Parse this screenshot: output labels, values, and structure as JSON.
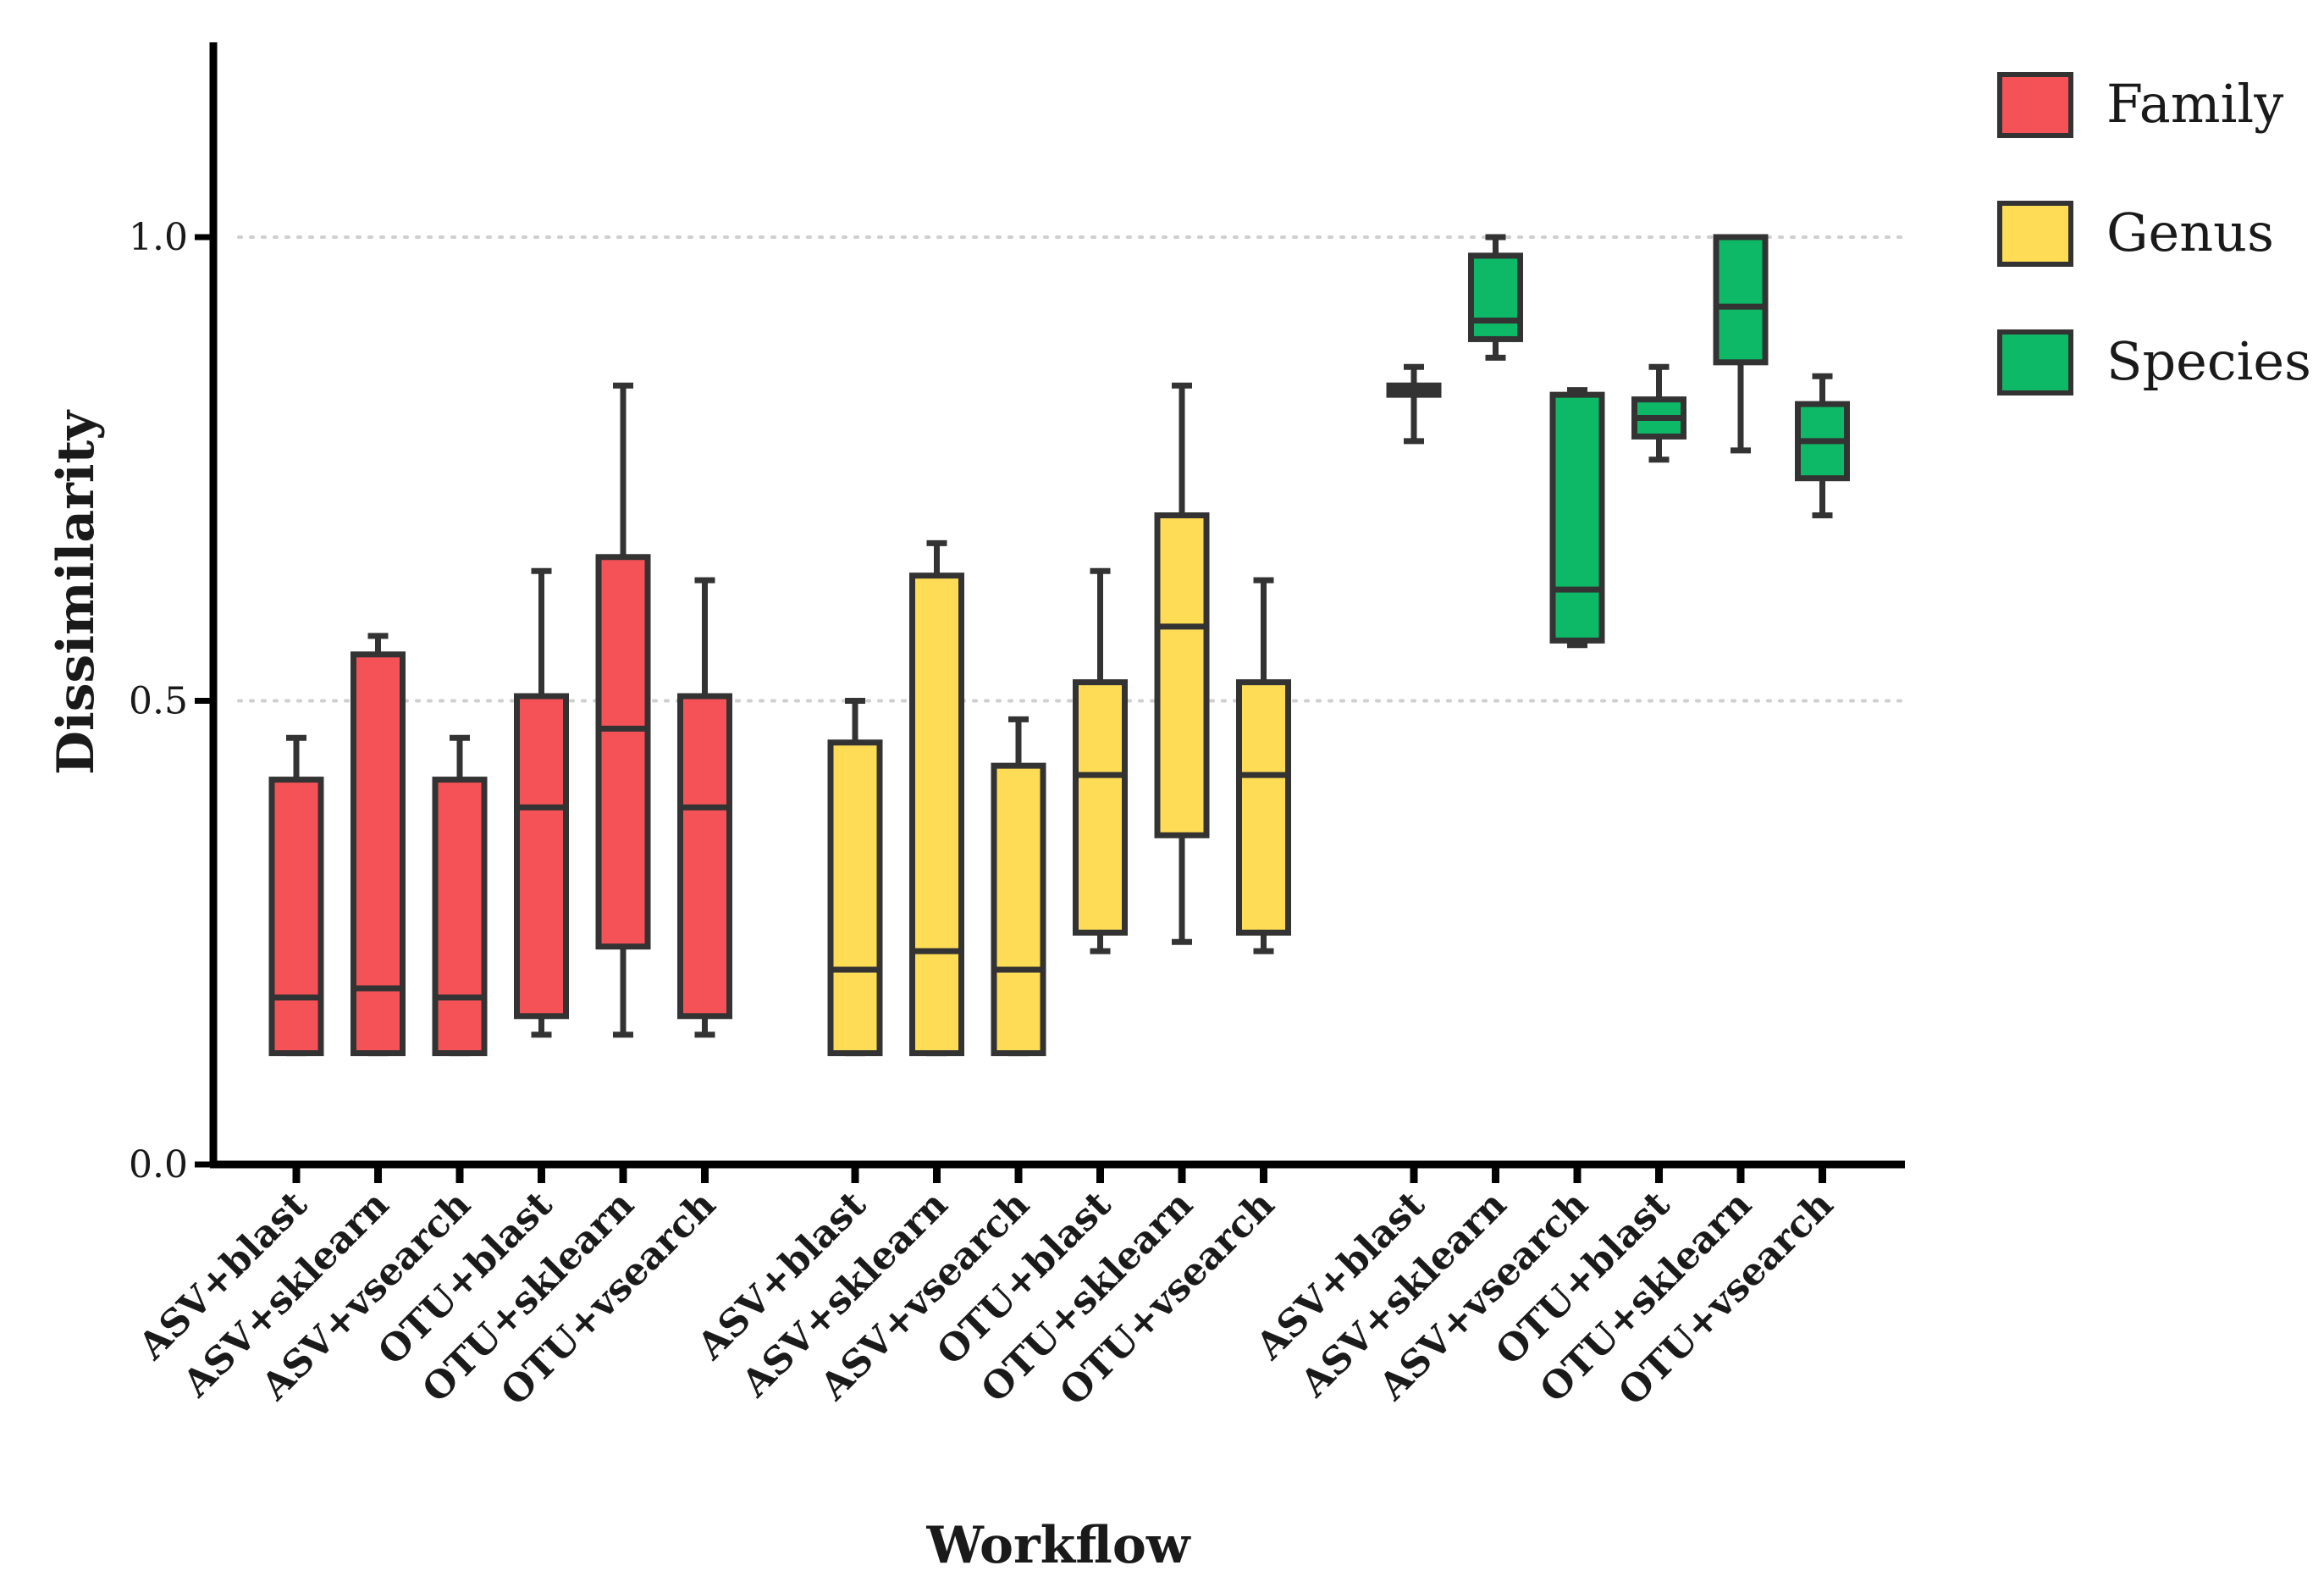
{
  "chart_data": {
    "type": "box",
    "title": "",
    "xlabel": "Workflow",
    "ylabel": "Dissimilarity",
    "ylim": [
      0,
      1.2
    ],
    "yticks": [
      {
        "value": 0.0,
        "label": "0.0"
      },
      {
        "value": 0.5,
        "label": "0.5"
      },
      {
        "value": 1.0,
        "label": "1.0"
      }
    ],
    "grid": "dotted horizontal at 0.5 and 1.0",
    "legend_position": "top-right",
    "categories": [
      "ASV+blast",
      "ASV+sklearn",
      "ASV+vsearch",
      "OTU+blast",
      "OTU+sklearn",
      "OTU+vsearch"
    ],
    "series": [
      {
        "name": "Family",
        "color": "#F55257",
        "boxes": [
          {
            "min": 0.12,
            "q1": 0.12,
            "median": 0.18,
            "q3": 0.415,
            "max": 0.46
          },
          {
            "min": 0.12,
            "q1": 0.12,
            "median": 0.19,
            "q3": 0.55,
            "max": 0.57
          },
          {
            "min": 0.12,
            "q1": 0.12,
            "median": 0.18,
            "q3": 0.415,
            "max": 0.46
          },
          {
            "min": 0.14,
            "q1": 0.16,
            "median": 0.385,
            "q3": 0.505,
            "max": 0.64
          },
          {
            "min": 0.14,
            "q1": 0.235,
            "median": 0.47,
            "q3": 0.655,
            "max": 0.84
          },
          {
            "min": 0.14,
            "q1": 0.16,
            "median": 0.385,
            "q3": 0.505,
            "max": 0.63
          }
        ]
      },
      {
        "name": "Genus",
        "color": "#FFDC55",
        "boxes": [
          {
            "min": 0.12,
            "q1": 0.12,
            "median": 0.21,
            "q3": 0.455,
            "max": 0.5
          },
          {
            "min": 0.12,
            "q1": 0.12,
            "median": 0.23,
            "q3": 0.635,
            "max": 0.67
          },
          {
            "min": 0.12,
            "q1": 0.12,
            "median": 0.21,
            "q3": 0.43,
            "max": 0.48
          },
          {
            "min": 0.23,
            "q1": 0.25,
            "median": 0.42,
            "q3": 0.52,
            "max": 0.64
          },
          {
            "min": 0.24,
            "q1": 0.355,
            "median": 0.58,
            "q3": 0.7,
            "max": 0.84
          },
          {
            "min": 0.23,
            "q1": 0.25,
            "median": 0.42,
            "q3": 0.52,
            "max": 0.63
          }
        ]
      },
      {
        "name": "Species",
        "color": "#0DB866",
        "boxes": [
          {
            "min": 0.78,
            "q1": 0.83,
            "median": 0.835,
            "q3": 0.84,
            "max": 0.86
          },
          {
            "min": 0.87,
            "q1": 0.89,
            "median": 0.91,
            "q3": 0.98,
            "max": 1.0
          },
          {
            "min": 0.56,
            "q1": 0.565,
            "median": 0.62,
            "q3": 0.83,
            "max": 0.835
          },
          {
            "min": 0.76,
            "q1": 0.785,
            "median": 0.805,
            "q3": 0.825,
            "max": 0.86
          },
          {
            "min": 0.77,
            "q1": 0.865,
            "median": 0.925,
            "q3": 1.0,
            "max": 1.0
          },
          {
            "min": 0.7,
            "q1": 0.74,
            "median": 0.78,
            "q3": 0.82,
            "max": 0.85
          }
        ]
      }
    ]
  }
}
